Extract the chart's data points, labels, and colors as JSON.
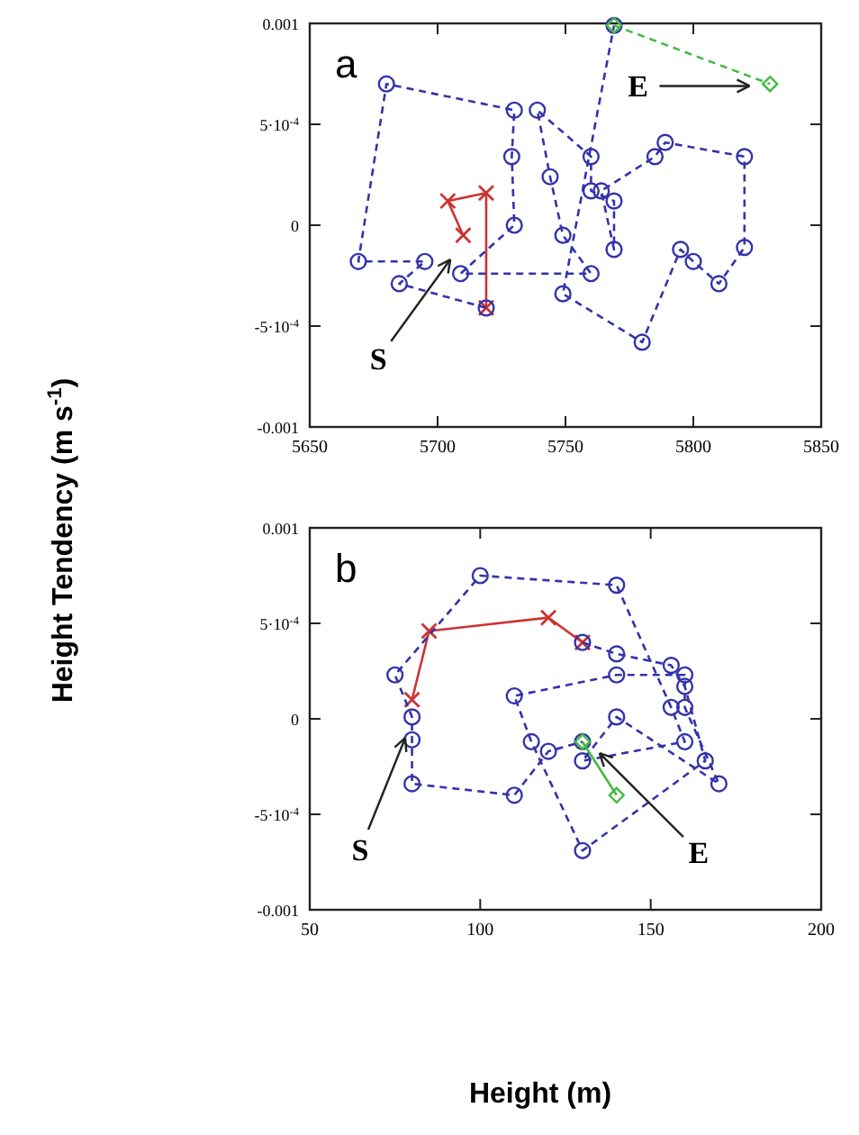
{
  "chart_data": [
    {
      "type": "line",
      "ylabel": "Height Tendency (m s$^{-1}$)",
      "xlim": [
        5650,
        5850
      ],
      "xticks": [
        5650,
        5700,
        5750,
        5800,
        5850
      ],
      "ylim": [
        -0.001,
        0.001
      ],
      "yticks": [
        {
          "value": -0.001,
          "label": "-0.001"
        },
        {
          "value": -0.0005,
          "label": "-5·10$^{-4}$"
        },
        0,
        {
          "value": 0.0005,
          "label": "5·10$^{-4}$"
        },
        {
          "value": 0.001,
          "label": "0.001"
        }
      ],
      "grid": false,
      "annotations": [
        "a",
        {
          "text": "S",
          "x": 5705,
          "y": -0.00017
        },
        {
          "text": "E",
          "x": 5822,
          "y": 0.00069
        }
      ],
      "series": [
        {
          "color": "#cc3333",
          "marker": "cross",
          "line_style": "solid",
          "x": [
            5710,
            5704,
            5719,
            5719
          ],
          "values": [
            -5e-05,
            0.00012,
            0.00016,
            -0.00041
          ]
        },
        {
          "color": "#3333aa",
          "marker": "circle",
          "line_style": "dashed",
          "x": [
            5719,
            5685,
            5695,
            5669,
            5680,
            5730,
            5729,
            5730,
            5709,
            5760,
            5749,
            5744,
            5739,
            5760,
            5760,
            5769,
            5769,
            5764,
            5785,
            5789,
            5820,
            5820,
            5810,
            5800,
            5795,
            5780,
            5749,
            5769
          ],
          "values": [
            -0.00041,
            -0.00029,
            -0.00018,
            -0.00018,
            0.0007,
            0.00057,
            0.00034,
            0,
            -0.00024,
            -0.00024,
            -5e-05,
            0.00024,
            0.00057,
            0.00034,
            0.00017,
            0.00012,
            -0.00012,
            0.00017,
            0.00034,
            0.00041,
            0.00034,
            -0.00011,
            -0.00029,
            -0.00018,
            -0.00012,
            -0.00058,
            -0.00034,
            0.00099
          ]
        },
        {
          "color": "#44bb44",
          "marker": "diamond",
          "line_style": "dashed",
          "x": [
            5769,
            5830
          ],
          "values": [
            0.00099,
            0.0007
          ]
        }
      ]
    },
    {
      "type": "line",
      "xlabel": "Height (m)",
      "xlim": [
        50,
        200
      ],
      "xticks": [
        50,
        100,
        150,
        200
      ],
      "ylim": [
        -0.001,
        0.001
      ],
      "yticks": [
        {
          "value": -0.001,
          "label": "-0.001"
        },
        {
          "value": -0.0005,
          "label": "-5·10$^{-4}$"
        },
        0,
        {
          "value": 0.0005,
          "label": "5·10$^{-4}$"
        },
        {
          "value": 0.001,
          "label": "0.001"
        }
      ],
      "grid": false,
      "annotations": [
        "b",
        {
          "text": "S",
          "x": 78,
          "y": -0.0001
        },
        {
          "text": "E",
          "x": 135,
          "y": -0.00018
        }
      ],
      "series": [
        {
          "color": "#cc3333",
          "marker": "cross",
          "line_style": "solid",
          "x": [
            80,
            85,
            120,
            130
          ],
          "values": [
            0.0001,
            0.00046,
            0.00053,
            0.0004
          ]
        },
        {
          "color": "#3333aa",
          "marker": "circle",
          "line_style": "dashed",
          "x": [
            130,
            140,
            156,
            160,
            166,
            130,
            115,
            110,
            140,
            160,
            160,
            170,
            140,
            130,
            160,
            156,
            140,
            100,
            75,
            80,
            80,
            80,
            110,
            120,
            130
          ],
          "values": [
            0.0004,
            0.00034,
            0.00028,
            0.00017,
            -0.00022,
            -0.00069,
            -0.00012,
            0.00012,
            0.00023,
            0.00023,
            6e-05,
            -0.00034,
            1e-05,
            -0.00022,
            -0.00012,
            6e-05,
            0.0007,
            0.00075,
            0.00023,
            1e-05,
            -0.00011,
            -0.00034,
            -0.0004,
            -0.00017,
            -0.00012
          ]
        },
        {
          "color": "#44bb44",
          "marker": "diamond",
          "line_style": "solid",
          "x": [
            130,
            140
          ],
          "values": [
            -0.00012,
            -0.0004
          ]
        }
      ]
    }
  ]
}
